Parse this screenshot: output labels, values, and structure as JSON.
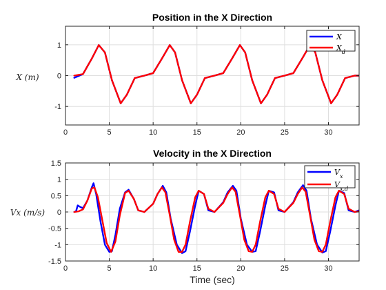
{
  "chart_data": [
    {
      "type": "line",
      "title": "Position in the X Direction",
      "xlabel": "",
      "ylabel": "X (m)",
      "xlim": [
        0,
        33.5
      ],
      "ylim": [
        -1.6,
        1.6
      ],
      "xticks": [
        0,
        5,
        10,
        15,
        20,
        25,
        30
      ],
      "yticks": [
        1,
        0,
        -1
      ],
      "grid": true,
      "legend_position": "top-right",
      "series": [
        {
          "name": "X",
          "color": "#0000ff",
          "x": [
            1.0,
            2.0,
            3.0,
            3.8,
            4.5,
            5.3,
            6.3,
            7.0,
            7.9,
            9.0,
            10.0,
            11.0,
            11.9,
            12.5,
            13.3,
            14.3,
            15.0,
            15.9,
            17.0,
            18.0,
            19.0,
            19.9,
            20.5,
            21.3,
            22.3,
            23.0,
            23.9,
            25.0,
            26.0,
            27.0,
            27.9,
            28.5,
            29.3,
            30.3,
            31.0,
            31.9,
            33.0,
            33.5
          ],
          "y": [
            -0.07,
            0.05,
            0.55,
            0.99,
            0.75,
            -0.15,
            -0.9,
            -0.62,
            -0.08,
            0.0,
            0.08,
            0.55,
            0.99,
            0.75,
            -0.15,
            -0.9,
            -0.62,
            -0.08,
            0.0,
            0.08,
            0.55,
            0.99,
            0.75,
            -0.15,
            -0.9,
            -0.62,
            -0.08,
            0.0,
            0.08,
            0.55,
            0.99,
            0.75,
            -0.15,
            -0.9,
            -0.62,
            -0.08,
            0.0,
            0.0
          ]
        },
        {
          "name": "X_d",
          "color": "#ff0000",
          "x": [
            1.0,
            2.0,
            3.0,
            3.8,
            4.5,
            5.3,
            6.3,
            7.0,
            7.9,
            9.0,
            10.0,
            11.0,
            11.9,
            12.5,
            13.3,
            14.3,
            15.0,
            15.9,
            17.0,
            18.0,
            19.0,
            19.9,
            20.5,
            21.3,
            22.3,
            23.0,
            23.9,
            25.0,
            26.0,
            27.0,
            27.9,
            28.5,
            29.3,
            30.3,
            31.0,
            31.9,
            33.0,
            33.5
          ],
          "y": [
            0.0,
            0.05,
            0.55,
            0.99,
            0.75,
            -0.15,
            -0.9,
            -0.62,
            -0.08,
            0.0,
            0.08,
            0.55,
            0.99,
            0.75,
            -0.15,
            -0.9,
            -0.62,
            -0.08,
            0.0,
            0.08,
            0.55,
            0.99,
            0.75,
            -0.15,
            -0.9,
            -0.62,
            -0.08,
            0.0,
            0.08,
            0.55,
            0.99,
            0.75,
            -0.15,
            -0.9,
            -0.62,
            -0.08,
            0.0,
            0.0
          ]
        }
      ]
    },
    {
      "type": "line",
      "title": "Velocity in the X Direction",
      "xlabel": "Time (sec)",
      "ylabel": "Vx (m/s)",
      "xlim": [
        0,
        33.5
      ],
      "ylim": [
        -1.5,
        1.5
      ],
      "xticks": [
        0,
        5,
        10,
        15,
        20,
        25,
        30
      ],
      "yticks": [
        1.5,
        1,
        0.5,
        0,
        -0.5,
        -1,
        -1.5
      ],
      "grid": true,
      "legend_position": "top-right",
      "series": [
        {
          "name": "V_x",
          "color": "#0000ff",
          "x": [
            1.0,
            1.2,
            1.4,
            1.7,
            2.0,
            2.5,
            3.0,
            3.2,
            3.5,
            4.0,
            4.5,
            5.0,
            5.3,
            5.7,
            6.2,
            6.8,
            7.2,
            7.8,
            8.3,
            9.0,
            10.0,
            10.5,
            11.1,
            11.5,
            12.0,
            12.7,
            13.3,
            13.7,
            14.2,
            14.8,
            15.2,
            15.8,
            16.3,
            17.0,
            18.0,
            18.5,
            19.1,
            19.5,
            20.0,
            20.7,
            21.3,
            21.7,
            22.2,
            22.8,
            23.2,
            23.8,
            24.3,
            25.0,
            26.0,
            26.5,
            27.1,
            27.5,
            28.0,
            28.7,
            29.3,
            29.7,
            30.2,
            30.8,
            31.2,
            31.8,
            32.3,
            33.0,
            33.5
          ],
          "y": [
            0.0,
            0.02,
            0.2,
            0.15,
            0.12,
            0.35,
            0.75,
            0.88,
            0.55,
            -0.3,
            -1.0,
            -1.22,
            -1.2,
            -0.7,
            0.1,
            0.6,
            0.68,
            0.4,
            0.05,
            0.0,
            0.25,
            0.55,
            0.8,
            0.6,
            -0.2,
            -1.0,
            -1.26,
            -1.2,
            -0.6,
            0.2,
            0.65,
            0.55,
            0.05,
            0.0,
            0.3,
            0.6,
            0.8,
            0.65,
            -0.2,
            -1.0,
            -1.22,
            -1.2,
            -0.6,
            0.2,
            0.65,
            0.6,
            0.05,
            0.0,
            0.3,
            0.6,
            0.82,
            0.65,
            -0.2,
            -1.0,
            -1.24,
            -1.2,
            -0.6,
            0.2,
            0.65,
            0.58,
            0.05,
            0.0,
            0.05
          ]
        },
        {
          "name": "V_x,d",
          "color": "#ff0000",
          "x": [
            1.0,
            1.5,
            2.0,
            2.5,
            3.0,
            3.3,
            3.7,
            4.2,
            4.7,
            5.2,
            5.7,
            6.2,
            6.8,
            7.2,
            7.8,
            8.3,
            9.0,
            10.0,
            10.5,
            11.0,
            11.4,
            11.9,
            12.4,
            12.9,
            13.3,
            13.7,
            14.2,
            14.8,
            15.2,
            15.8,
            16.3,
            17.0,
            18.0,
            18.5,
            19.0,
            19.4,
            19.9,
            20.4,
            20.9,
            21.3,
            21.7,
            22.2,
            22.8,
            23.2,
            23.8,
            24.3,
            25.0,
            26.0,
            26.5,
            27.0,
            27.4,
            27.9,
            28.4,
            28.9,
            29.3,
            29.7,
            30.2,
            30.8,
            31.2,
            31.8,
            32.3,
            33.0,
            33.5
          ],
          "y": [
            0.0,
            0.02,
            0.08,
            0.35,
            0.72,
            0.75,
            0.45,
            -0.25,
            -0.95,
            -1.22,
            -0.9,
            -0.1,
            0.58,
            0.65,
            0.4,
            0.05,
            0.0,
            0.25,
            0.55,
            0.75,
            0.6,
            -0.1,
            -0.85,
            -1.22,
            -1.22,
            -1.0,
            -0.3,
            0.45,
            0.65,
            0.55,
            0.1,
            0.0,
            0.28,
            0.55,
            0.75,
            0.62,
            -0.1,
            -0.85,
            -1.2,
            -1.22,
            -1.0,
            -0.3,
            0.45,
            0.65,
            0.55,
            0.1,
            0.0,
            0.28,
            0.55,
            0.75,
            0.62,
            -0.1,
            -0.85,
            -1.2,
            -1.22,
            -1.0,
            -0.3,
            0.45,
            0.65,
            0.55,
            0.1,
            0.0,
            0.02
          ]
        }
      ]
    }
  ]
}
